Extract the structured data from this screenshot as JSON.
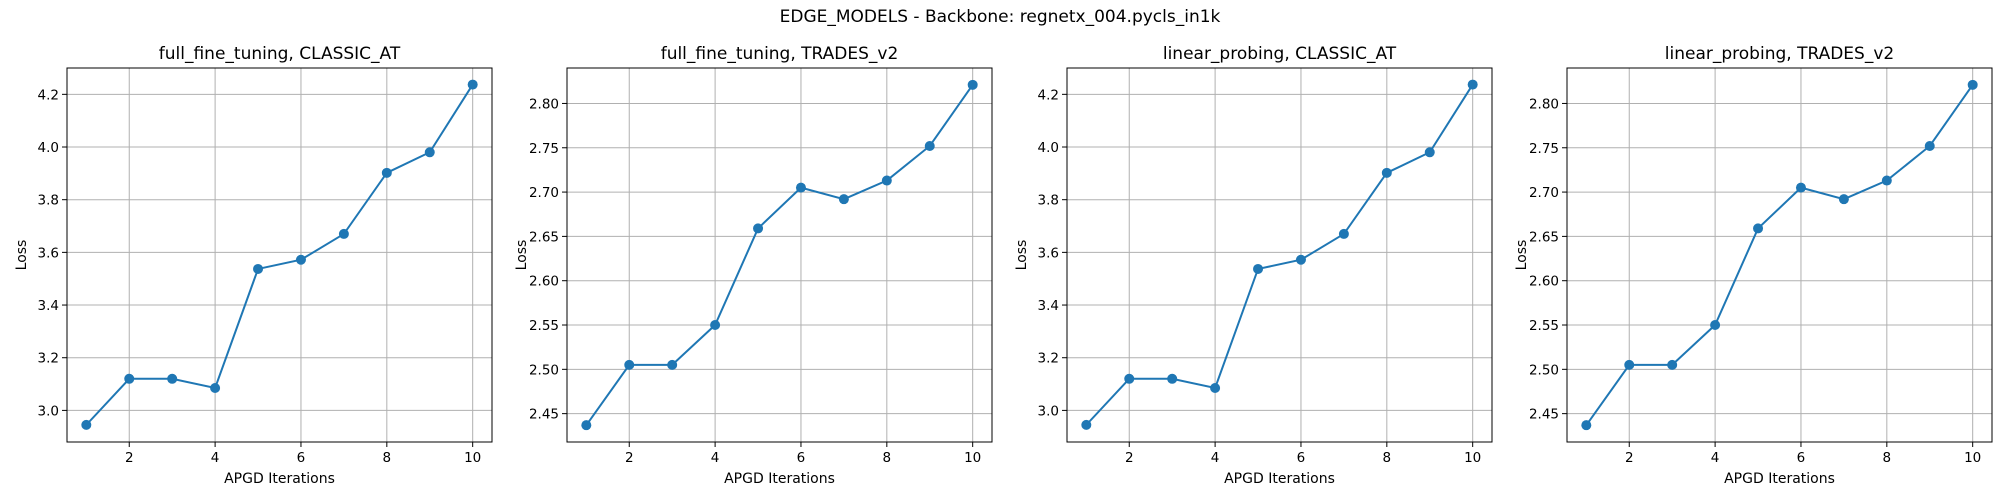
{
  "figure": {
    "suptitle": "EDGE_MODELS - Backbone: regnetx_004.pycls_in1k"
  },
  "chart_data": [
    {
      "type": "line",
      "title": "full_fine_tuning, CLASSIC_AT",
      "xlabel": "APGD Iterations",
      "ylabel": "Loss",
      "x": [
        1,
        2,
        3,
        4,
        5,
        6,
        7,
        8,
        9,
        10
      ],
      "series": [
        {
          "values": [
            2.945,
            3.12,
            3.12,
            3.085,
            3.537,
            3.572,
            3.67,
            3.902,
            3.98,
            4.237
          ],
          "color": "#1f77b4",
          "marker": "circle"
        }
      ],
      "xlim": [
        0.55,
        10.45
      ],
      "ylim": [
        2.88,
        4.3
      ],
      "xticks": [
        2,
        4,
        6,
        8,
        10
      ],
      "xtick_labels": [
        "2",
        "4",
        "6",
        "8",
        "10"
      ],
      "yticks": [
        3.0,
        3.2,
        3.4,
        3.6,
        3.8,
        4.0,
        4.2
      ],
      "ytick_labels": [
        "3.0",
        "3.2",
        "3.4",
        "3.6",
        "3.8",
        "4.0",
        "4.2"
      ],
      "grid": true
    },
    {
      "type": "line",
      "title": "full_fine_tuning, TRADES_v2",
      "xlabel": "APGD Iterations",
      "ylabel": "Loss",
      "x": [
        1,
        2,
        3,
        4,
        5,
        6,
        7,
        8,
        9,
        10
      ],
      "series": [
        {
          "values": [
            2.437,
            2.505,
            2.505,
            2.55,
            2.659,
            2.705,
            2.692,
            2.713,
            2.752,
            2.821
          ],
          "color": "#1f77b4",
          "marker": "circle"
        }
      ],
      "xlim": [
        0.55,
        10.45
      ],
      "ylim": [
        2.418,
        2.84
      ],
      "xticks": [
        2,
        4,
        6,
        8,
        10
      ],
      "xtick_labels": [
        "2",
        "4",
        "6",
        "8",
        "10"
      ],
      "yticks": [
        2.45,
        2.5,
        2.55,
        2.6,
        2.65,
        2.7,
        2.75,
        2.8
      ],
      "ytick_labels": [
        "2.45",
        "2.50",
        "2.55",
        "2.60",
        "2.65",
        "2.70",
        "2.75",
        "2.80"
      ],
      "grid": true
    },
    {
      "type": "line",
      "title": "linear_probing, CLASSIC_AT",
      "xlabel": "APGD Iterations",
      "ylabel": "Loss",
      "x": [
        1,
        2,
        3,
        4,
        5,
        6,
        7,
        8,
        9,
        10
      ],
      "series": [
        {
          "values": [
            2.945,
            3.12,
            3.12,
            3.085,
            3.537,
            3.572,
            3.67,
            3.902,
            3.98,
            4.237
          ],
          "color": "#1f77b4",
          "marker": "circle"
        }
      ],
      "xlim": [
        0.55,
        10.45
      ],
      "ylim": [
        2.88,
        4.3
      ],
      "xticks": [
        2,
        4,
        6,
        8,
        10
      ],
      "xtick_labels": [
        "2",
        "4",
        "6",
        "8",
        "10"
      ],
      "yticks": [
        3.0,
        3.2,
        3.4,
        3.6,
        3.8,
        4.0,
        4.2
      ],
      "ytick_labels": [
        "3.0",
        "3.2",
        "3.4",
        "3.6",
        "3.8",
        "4.0",
        "4.2"
      ],
      "grid": true
    },
    {
      "type": "line",
      "title": "linear_probing, TRADES_v2",
      "xlabel": "APGD Iterations",
      "ylabel": "Loss",
      "x": [
        1,
        2,
        3,
        4,
        5,
        6,
        7,
        8,
        9,
        10
      ],
      "series": [
        {
          "values": [
            2.437,
            2.505,
            2.505,
            2.55,
            2.659,
            2.705,
            2.692,
            2.713,
            2.752,
            2.821
          ],
          "color": "#1f77b4",
          "marker": "circle"
        }
      ],
      "xlim": [
        0.55,
        10.45
      ],
      "ylim": [
        2.418,
        2.84
      ],
      "xticks": [
        2,
        4,
        6,
        8,
        10
      ],
      "xtick_labels": [
        "2",
        "4",
        "6",
        "8",
        "10"
      ],
      "yticks": [
        2.45,
        2.5,
        2.55,
        2.6,
        2.65,
        2.7,
        2.75,
        2.8
      ],
      "ytick_labels": [
        "2.45",
        "2.50",
        "2.55",
        "2.60",
        "2.65",
        "2.70",
        "2.75",
        "2.80"
      ],
      "grid": true
    }
  ]
}
